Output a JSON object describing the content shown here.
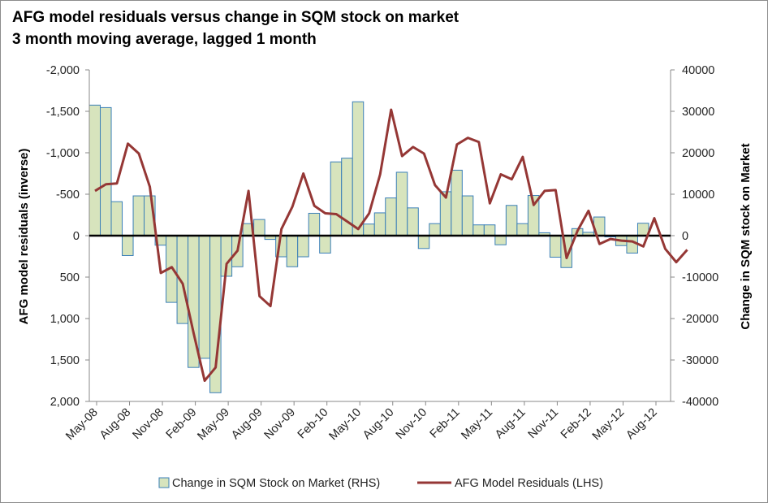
{
  "chart_data": {
    "type": "bar+line",
    "title": "AFG model residuals versus change in SQM stock on market",
    "subtitle": "3 month moving average, lagged 1 month",
    "left_axis": {
      "label": "AFG model residuals (inverse)",
      "range": [
        -2000,
        2000
      ],
      "inverted": true,
      "ticks": [
        -2000,
        -1500,
        -1000,
        -500,
        0,
        500,
        1000,
        1500,
        2000
      ],
      "tick_labels": [
        "-2,000",
        "-1,500",
        "-1,000",
        "-500",
        "0",
        "500",
        "1,000",
        "1,500",
        "2,000"
      ]
    },
    "right_axis": {
      "label": "Change in SQM stock on Market",
      "range": [
        -40000,
        40000
      ],
      "ticks": [
        40000,
        30000,
        20000,
        10000,
        0,
        -10000,
        -20000,
        -30000,
        -40000
      ],
      "tick_labels": [
        "40000",
        "30000",
        "20000",
        "10000",
        "0",
        "-10000",
        "-20000",
        "-30000",
        "-40000"
      ]
    },
    "x_tick_labels": [
      "May-08",
      "Aug-08",
      "Nov-08",
      "Feb-09",
      "May-09",
      "Aug-09",
      "Nov-09",
      "Feb-10",
      "May-10",
      "Aug-10",
      "Nov-10",
      "Feb-11",
      "May-11",
      "Aug-11",
      "Nov-11",
      "Feb-12",
      "May-12",
      "Aug-12"
    ],
    "series": [
      {
        "name": "Change in SQM Stock on Market (RHS)",
        "type": "bar",
        "axis": "right",
        "color": "#d7e4bd",
        "edge": "#3a7fb8",
        "values": [
          31500,
          30900,
          8200,
          -4800,
          9600,
          9600,
          -2300,
          -16100,
          -21200,
          -31800,
          -29600,
          -37900,
          -9800,
          -7500,
          2900,
          3900,
          -900,
          -5100,
          -7500,
          -5100,
          5400,
          -4200,
          17800,
          18700,
          32300,
          2800,
          5500,
          9100,
          15300,
          6700,
          -3100,
          2900,
          10600,
          15800,
          9600,
          2600,
          2600,
          -2200,
          7300,
          2900,
          9700,
          700,
          -5200,
          -7700,
          1700,
          800,
          4500,
          -300,
          -2400,
          -4200,
          3000
        ]
      },
      {
        "name": "AFG Model Residuals (LHS)",
        "type": "line",
        "axis": "left",
        "color": "#953735",
        "values": [
          -540,
          -620,
          -630,
          -1110,
          -990,
          -590,
          450,
          380,
          580,
          1180,
          1750,
          1590,
          340,
          180,
          -540,
          730,
          850,
          -80,
          -350,
          -750,
          -360,
          -270,
          -260,
          -170,
          -80,
          -270,
          -740,
          -1520,
          -960,
          -1070,
          -990,
          -610,
          -460,
          -1100,
          -1180,
          -1130,
          -390,
          -740,
          -680,
          -950,
          -370,
          -540,
          -550,
          270,
          -60,
          -300,
          100,
          40,
          60,
          70,
          130,
          -210,
          160,
          320,
          170
        ]
      }
    ],
    "legend": {
      "position": "bottom-center",
      "items": [
        "Change in SQM Stock on Market (RHS)",
        "AFG Model Residuals (LHS)"
      ]
    }
  }
}
